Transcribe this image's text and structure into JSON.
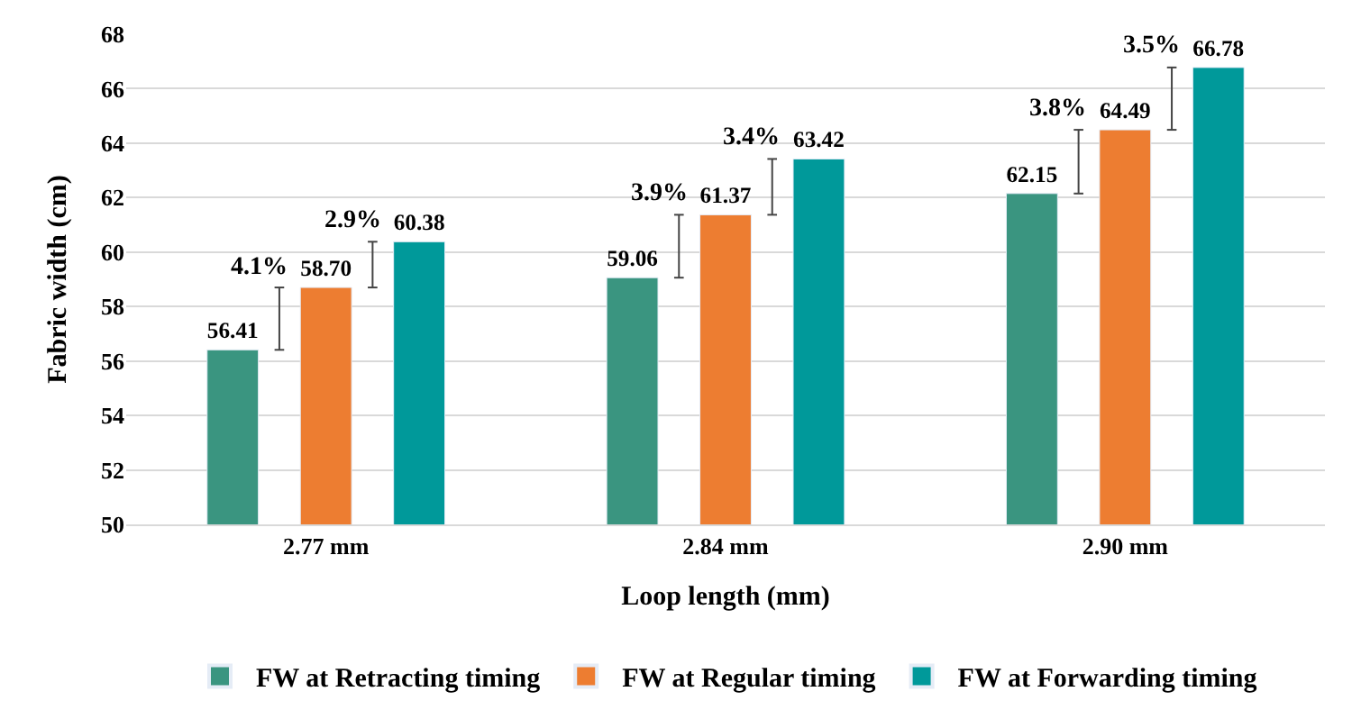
{
  "chart_data": {
    "type": "bar",
    "xlabel": "Loop length (mm)",
    "ylabel": "Fabric width (cm)",
    "categories": [
      "2.77 mm",
      "2.84 mm",
      "2.90 mm"
    ],
    "series": [
      {
        "name": "FW at Retracting timing",
        "color": "#3a9580",
        "values": [
          56.41,
          59.06,
          62.15
        ],
        "value_labels": [
          "56.41",
          "59.06",
          "62.15"
        ]
      },
      {
        "name": "FW at Regular timing",
        "color": "#ed7d31",
        "values": [
          58.7,
          61.37,
          64.49
        ],
        "value_labels": [
          "58.70",
          "61.37",
          "64.49"
        ]
      },
      {
        "name": "FW at Forwarding timing",
        "color": "#00999a",
        "values": [
          60.38,
          63.42,
          66.78
        ],
        "value_labels": [
          "60.38",
          "63.42",
          "66.78"
        ]
      }
    ],
    "annotations": [
      "4.1%",
      "2.9%",
      "3.9%",
      "3.4%",
      "3.8%",
      "3.5%"
    ],
    "ylim": [
      50,
      68
    ],
    "yticks": [
      50,
      52,
      54,
      56,
      58,
      60,
      62,
      64,
      66,
      68
    ],
    "grid": "y",
    "legend": "bottom"
  }
}
